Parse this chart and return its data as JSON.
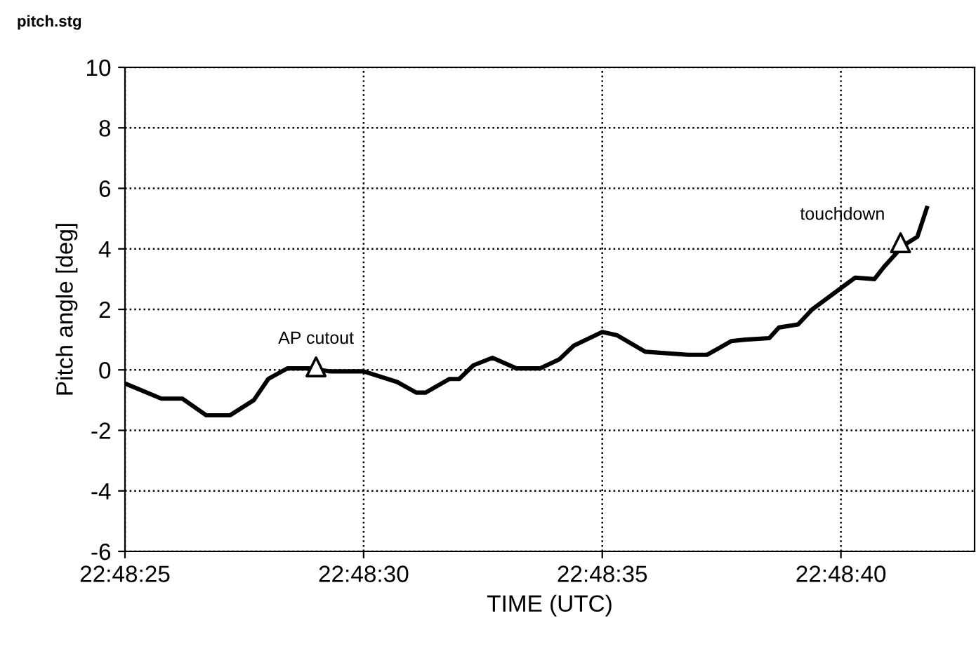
{
  "chart_data": {
    "type": "line",
    "title": "pitch.stg",
    "xlabel": "TIME (UTC)",
    "ylabel": "Pitch angle [deg]",
    "series": [
      {
        "color": "#000000",
        "marker": "none",
        "line_style": "solid",
        "x": [
          22.806944,
          22.807156,
          22.807278,
          22.807417,
          22.807556,
          22.807694,
          22.807778,
          22.807889,
          22.808014,
          22.808139,
          22.808333,
          22.808528,
          22.808639,
          22.808694,
          22.808833,
          22.808889,
          22.808972,
          22.809083,
          22.809222,
          22.809361,
          22.809472,
          22.809556,
          22.809722,
          22.809806,
          22.809972,
          22.810222,
          22.810333,
          22.810472,
          22.810556,
          22.810694,
          22.81075,
          22.810861,
          22.810944,
          22.811111,
          22.811194,
          22.811306,
          22.811361,
          22.811472,
          22.811556,
          22.811611
        ],
        "values": [
          -0.45,
          -0.95,
          -0.95,
          -1.5,
          -1.5,
          -1.0,
          -0.3,
          0.05,
          0.05,
          -0.05,
          -0.05,
          -0.4,
          -0.75,
          -0.75,
          -0.3,
          -0.3,
          0.15,
          0.4,
          0.05,
          0.05,
          0.35,
          0.8,
          1.25,
          1.15,
          0.6,
          0.5,
          0.5,
          0.95,
          1.0,
          1.05,
          1.4,
          1.5,
          2.0,
          2.7,
          3.05,
          3.0,
          3.4,
          4.1,
          4.4,
          5.35
        ]
      },
      {
        "type": "scatter",
        "color": "#000000",
        "marker": "triangle",
        "x": [
          22.808056,
          22.811458
        ],
        "values": [
          0.1,
          4.2
        ]
      }
    ],
    "annotations": [
      {
        "text": "AP cutout",
        "x": 22.808056,
        "y": 0.1
      },
      {
        "text": "touchdown",
        "x": 22.811458,
        "y": 4.2
      }
    ],
    "xlim": [
      22.806944,
      22.811889
    ],
    "xticks": [
      {
        "value": 22.806944,
        "label": "22:48:25"
      },
      {
        "value": 22.808333,
        "label": "22:48:30"
      },
      {
        "value": 22.809722,
        "label": "22:48:35"
      },
      {
        "value": 22.811111,
        "label": "22:48:40"
      }
    ],
    "ylim": [
      -6,
      10
    ],
    "yticks": [
      -6,
      -4,
      -2,
      0,
      2,
      4,
      6,
      8,
      10
    ],
    "grid": true
  }
}
